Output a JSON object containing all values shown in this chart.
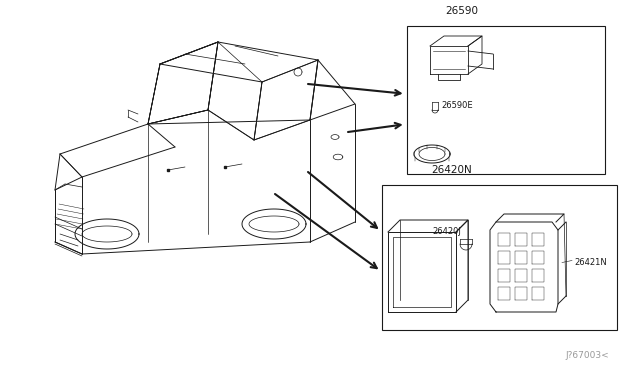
{
  "bg_color": "#ffffff",
  "line_color": "#1a1a1a",
  "gray": "#888888",
  "part_label_26590": "26590",
  "part_label_26590E": "26590E",
  "part_label_26420N": "26420N",
  "part_label_26420J": "26420J",
  "part_label_26421N": "26421N",
  "watermark": "J?67003<",
  "font_size_label": 7.5,
  "font_size_watermark": 6.5
}
